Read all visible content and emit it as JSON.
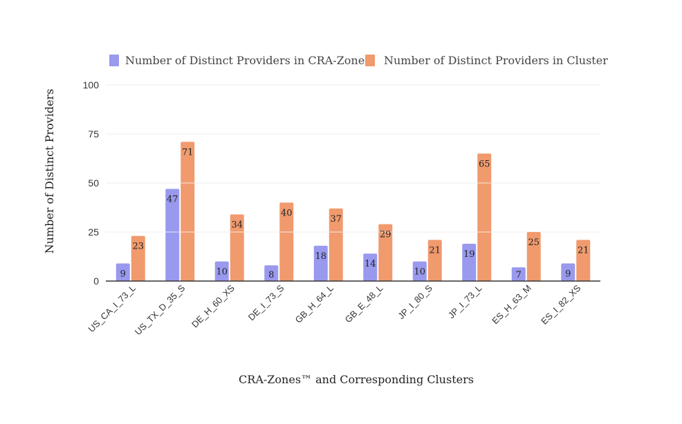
{
  "colors": {
    "series1": "#9999ee",
    "series2": "#f09a6e",
    "grid": "#eeeeee",
    "axis": "#333333"
  },
  "chart_data": {
    "type": "bar",
    "xlabel": "CRA-Zones™ and Corresponding Clusters",
    "ylabel": "Number of Distinct Providers",
    "ylim": [
      0,
      100
    ],
    "yticks": [
      0,
      25,
      50,
      75,
      100
    ],
    "grid": true,
    "legend_position": "top",
    "categories": [
      "US_CA_I_73_L",
      "US_TX_D_35_S",
      "DE_H_60_XS",
      "DE_I_73_S",
      "GB_H_64_L",
      "GB_E_48_L",
      "JP_I_80_S",
      "JP_I_73_L",
      "ES_H_63_M",
      "ES_I_82_XS"
    ],
    "series": [
      {
        "name": "Number of Distinct Providers in CRA-Zone",
        "values": [
          9,
          47,
          10,
          8,
          18,
          14,
          10,
          19,
          7,
          9
        ]
      },
      {
        "name": "Number of Distinct Providers in Cluster",
        "values": [
          23,
          71,
          34,
          40,
          37,
          29,
          21,
          65,
          25,
          21
        ]
      }
    ]
  }
}
